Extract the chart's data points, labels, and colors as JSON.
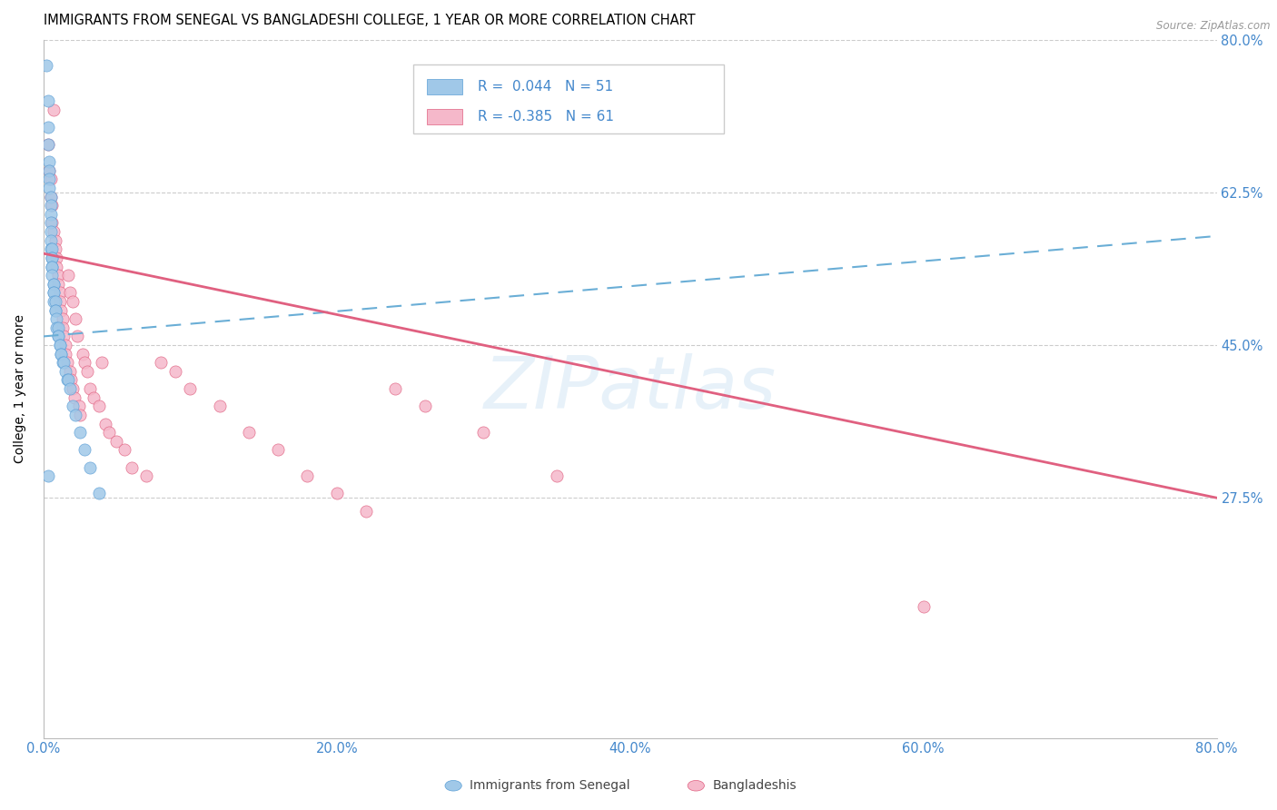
{
  "title": "IMMIGRANTS FROM SENEGAL VS BANGLADESHI COLLEGE, 1 YEAR OR MORE CORRELATION CHART",
  "source": "Source: ZipAtlas.com",
  "ylabel": "College, 1 year or more",
  "xlim": [
    0.0,
    0.8
  ],
  "ylim": [
    0.0,
    0.8
  ],
  "yticks": [
    0.275,
    0.45,
    0.625,
    0.8
  ],
  "ytick_labels": [
    "27.5%",
    "45.0%",
    "62.5%",
    "80.0%"
  ],
  "xticks": [
    0.0,
    0.2,
    0.4,
    0.6,
    0.8
  ],
  "xtick_labels": [
    "0.0%",
    "20.0%",
    "40.0%",
    "60.0%",
    "80.0%"
  ],
  "watermark": "ZIPatlas",
  "senegal_color": "#A0C8E8",
  "senegal_edge": "#5B9FD6",
  "senegal_line": "#6AAED6",
  "bangladeshi_color": "#F5B8CA",
  "bangladeshi_edge": "#E06080",
  "bangladeshi_line": "#E06080",
  "background_color": "#FFFFFF",
  "grid_color": "#CCCCCC",
  "tick_color": "#4488CC",
  "R_senegal": 0.044,
  "N_senegal": 51,
  "R_bangladeshi": -0.385,
  "N_bangladeshi": 61,
  "senegal_trend_x": [
    0.0,
    0.8
  ],
  "senegal_trend_y": [
    0.46,
    0.575
  ],
  "bangladeshi_trend_x": [
    0.0,
    0.8
  ],
  "bangladeshi_trend_y": [
    0.555,
    0.275
  ],
  "senegal_x": [
    0.002,
    0.003,
    0.003,
    0.003,
    0.004,
    0.004,
    0.004,
    0.004,
    0.005,
    0.005,
    0.005,
    0.005,
    0.005,
    0.005,
    0.005,
    0.006,
    0.006,
    0.006,
    0.006,
    0.006,
    0.006,
    0.007,
    0.007,
    0.007,
    0.007,
    0.007,
    0.008,
    0.008,
    0.008,
    0.009,
    0.009,
    0.01,
    0.01,
    0.01,
    0.011,
    0.011,
    0.012,
    0.012,
    0.013,
    0.014,
    0.015,
    0.016,
    0.017,
    0.018,
    0.02,
    0.022,
    0.025,
    0.028,
    0.032,
    0.038,
    0.003
  ],
  "senegal_y": [
    0.77,
    0.73,
    0.7,
    0.68,
    0.66,
    0.65,
    0.64,
    0.63,
    0.62,
    0.61,
    0.6,
    0.59,
    0.58,
    0.57,
    0.56,
    0.56,
    0.55,
    0.55,
    0.54,
    0.54,
    0.53,
    0.52,
    0.52,
    0.51,
    0.51,
    0.5,
    0.5,
    0.49,
    0.49,
    0.48,
    0.47,
    0.47,
    0.46,
    0.46,
    0.45,
    0.45,
    0.44,
    0.44,
    0.43,
    0.43,
    0.42,
    0.41,
    0.41,
    0.4,
    0.38,
    0.37,
    0.35,
    0.33,
    0.31,
    0.28,
    0.3
  ],
  "bangladeshi_x": [
    0.003,
    0.004,
    0.005,
    0.005,
    0.006,
    0.006,
    0.007,
    0.007,
    0.008,
    0.008,
    0.009,
    0.009,
    0.01,
    0.01,
    0.011,
    0.011,
    0.012,
    0.013,
    0.013,
    0.014,
    0.015,
    0.015,
    0.016,
    0.017,
    0.018,
    0.018,
    0.019,
    0.02,
    0.02,
    0.021,
    0.022,
    0.023,
    0.024,
    0.025,
    0.027,
    0.028,
    0.03,
    0.032,
    0.034,
    0.038,
    0.04,
    0.042,
    0.045,
    0.05,
    0.055,
    0.06,
    0.07,
    0.08,
    0.09,
    0.1,
    0.12,
    0.14,
    0.16,
    0.18,
    0.2,
    0.22,
    0.24,
    0.26,
    0.3,
    0.35,
    0.6
  ],
  "bangladeshi_y": [
    0.68,
    0.65,
    0.64,
    0.62,
    0.61,
    0.59,
    0.58,
    0.72,
    0.57,
    0.56,
    0.55,
    0.54,
    0.53,
    0.52,
    0.51,
    0.5,
    0.49,
    0.48,
    0.47,
    0.46,
    0.45,
    0.44,
    0.43,
    0.53,
    0.51,
    0.42,
    0.41,
    0.5,
    0.4,
    0.39,
    0.48,
    0.46,
    0.38,
    0.37,
    0.44,
    0.43,
    0.42,
    0.4,
    0.39,
    0.38,
    0.43,
    0.36,
    0.35,
    0.34,
    0.33,
    0.31,
    0.3,
    0.43,
    0.42,
    0.4,
    0.38,
    0.35,
    0.33,
    0.3,
    0.28,
    0.26,
    0.4,
    0.38,
    0.35,
    0.3,
    0.15
  ]
}
